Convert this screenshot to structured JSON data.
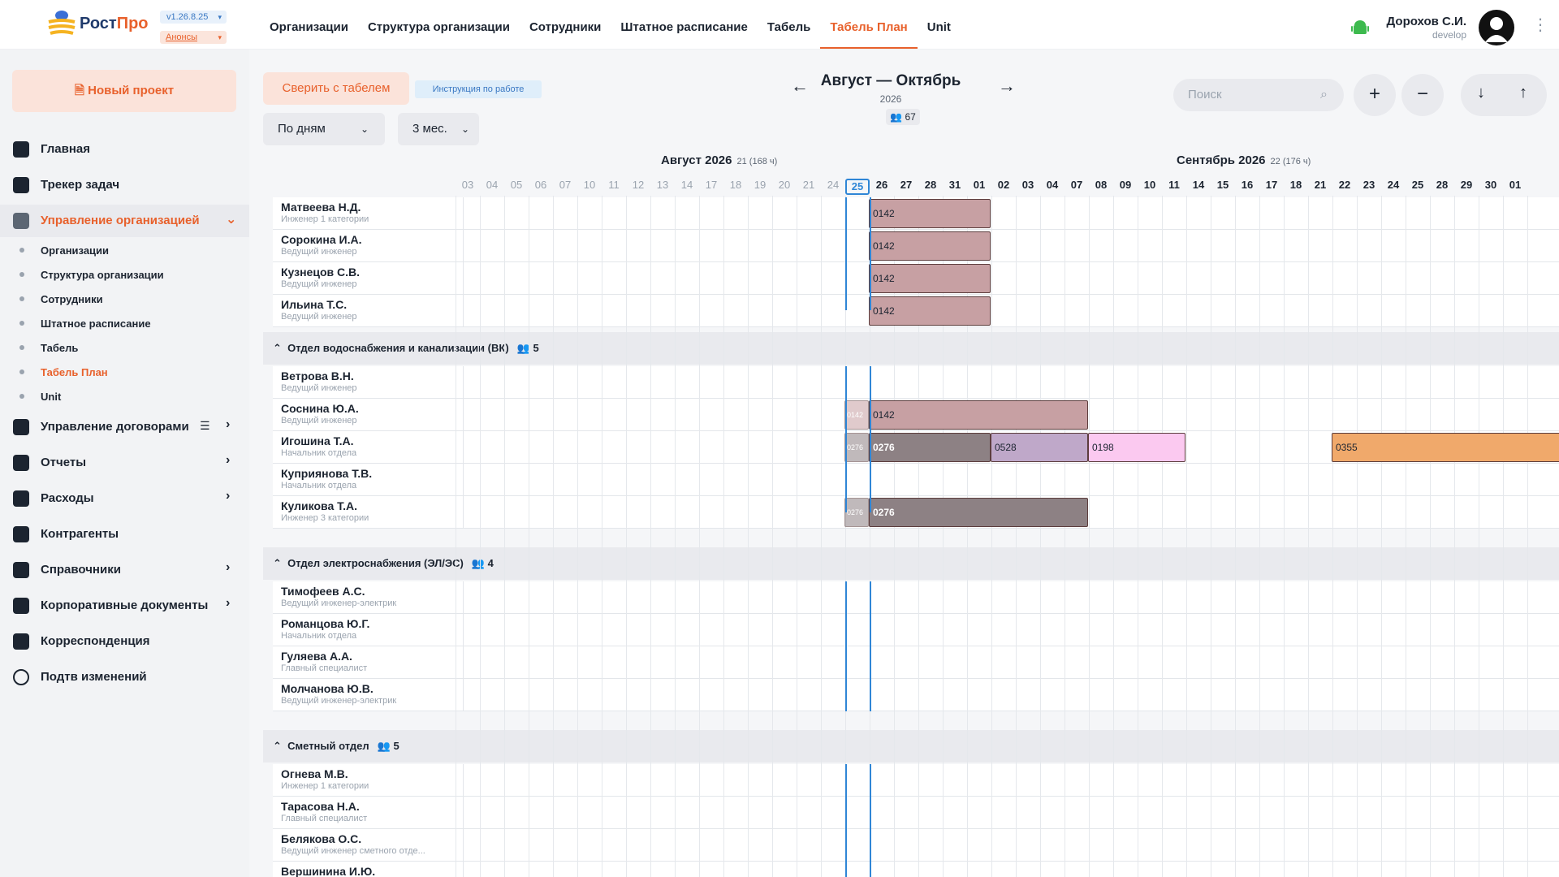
{
  "app": {
    "logo_text_a": "Рост",
    "logo_text_b": "Про",
    "version": "v1.26.8.25",
    "announcements": "Анонсы",
    "user_name": "Дорохов С.И.",
    "user_role": "develop"
  },
  "topnav": [
    "Организации",
    "Структура организации",
    "Сотрудники",
    "Штатное расписание",
    "Табель",
    "Табель План",
    "Unit"
  ],
  "sidebar": {
    "new_project": "Новый проект",
    "items": [
      {
        "label": "Главная",
        "icon": "dashboard-icon"
      },
      {
        "label": "Трекер задач",
        "icon": "tasks-icon"
      },
      {
        "label": "Управление организацией",
        "icon": "people-icon"
      },
      {
        "label": "Управление договорами",
        "icon": "contracts-icon"
      },
      {
        "label": "Отчеты",
        "icon": "reports-icon"
      },
      {
        "label": "Расходы",
        "icon": "wallet-icon"
      },
      {
        "label": "Контрагенты",
        "icon": "briefcase-icon"
      },
      {
        "label": "Справочники",
        "icon": "book-icon"
      },
      {
        "label": "Корпоративные документы",
        "icon": "folder-icon"
      },
      {
        "label": "Корреспонденция",
        "icon": "mail-icon"
      },
      {
        "label": "Подтв изменений",
        "icon": "alert-icon"
      }
    ],
    "subitems": [
      "Организации",
      "Структура организации",
      "Сотрудники",
      "Штатное расписание",
      "Табель",
      "Табель План",
      "Unit"
    ]
  },
  "toolbar": {
    "compare": "Сверить с табелем",
    "instructions": "Инструкция по работе",
    "by_days": "По дням",
    "months": "3 мес.",
    "period": "Август — Октябрь",
    "year": "2026",
    "count": "67",
    "search_placeholder": "Поиск"
  },
  "months": [
    {
      "label": "Август 2026",
      "meta": "21 (168 ч)"
    },
    {
      "label": "Сентябрь 2026",
      "meta": "22 (176 ч)"
    }
  ],
  "days_aug": [
    "03",
    "04",
    "05",
    "06",
    "07",
    "10",
    "11",
    "12",
    "13",
    "14",
    "17",
    "18",
    "19",
    "20",
    "21",
    "24",
    "25",
    "26",
    "27",
    "28",
    "31"
  ],
  "days_sep": [
    "01",
    "02",
    "03",
    "04",
    "07",
    "08",
    "09",
    "10",
    "11",
    "14",
    "15",
    "16",
    "17",
    "18",
    "21",
    "22",
    "23",
    "24",
    "25",
    "28",
    "29",
    "30",
    "01"
  ],
  "groups": [
    {
      "title": "",
      "count": "",
      "rows": [
        {
          "name": "Матвеева Н.Д.",
          "pos": "Инженер 1 категории"
        },
        {
          "name": "Сорокина И.А.",
          "pos": "Ведущий инженер"
        },
        {
          "name": "Кузнецов С.В.",
          "pos": "Ведущий инженер"
        },
        {
          "name": "Ильина Т.С.",
          "pos": "Ведущий инженер"
        }
      ]
    },
    {
      "title": "Отдел водоснабжения и канализации (ВК)",
      "count": "5",
      "rows": [
        {
          "name": "Ветрова В.Н.",
          "pos": "Ведущий инженер"
        },
        {
          "name": "Соснина Ю.А.",
          "pos": "Ведущий инженер"
        },
        {
          "name": "Игошина Т.А.",
          "pos": "Начальник отдела"
        },
        {
          "name": "Куприянова Т.В.",
          "pos": "Начальник отдела"
        },
        {
          "name": "Куликова Т.А.",
          "pos": "Инженер 3 категории"
        }
      ]
    },
    {
      "title": "Отдел электроснабжения (ЭЛ/ЭС)",
      "count": "4",
      "rows": [
        {
          "name": "Тимофеев А.С.",
          "pos": "Ведущий инженер-электрик"
        },
        {
          "name": "Романцова Ю.Г.",
          "pos": "Начальник отдела"
        },
        {
          "name": "Гуляева А.А.",
          "pos": "Главный специалист"
        },
        {
          "name": "Молчанова Ю.В.",
          "pos": "Ведущий инженер-электрик"
        }
      ]
    },
    {
      "title": "Сметный отдел",
      "count": "5",
      "rows": [
        {
          "name": "Огнева М.В.",
          "pos": "Инженер 1 категории"
        },
        {
          "name": "Тарасова Н.А.",
          "pos": "Главный специалист"
        },
        {
          "name": "Белякова О.С.",
          "pos": "Ведущий инженер сметного отде..."
        },
        {
          "name": "Вершинина И.Ю.",
          "pos": ""
        }
      ]
    }
  ],
  "bars": [
    {
      "code": "0142",
      "color": "#c7a0a3"
    },
    {
      "code": "0276",
      "color": "#8d8184"
    },
    {
      "code": "0528",
      "color": "#bfa8c9"
    },
    {
      "code": "0198",
      "color": "#fbc9f0"
    },
    {
      "code": "0355",
      "color": "#f0a96b"
    }
  ]
}
